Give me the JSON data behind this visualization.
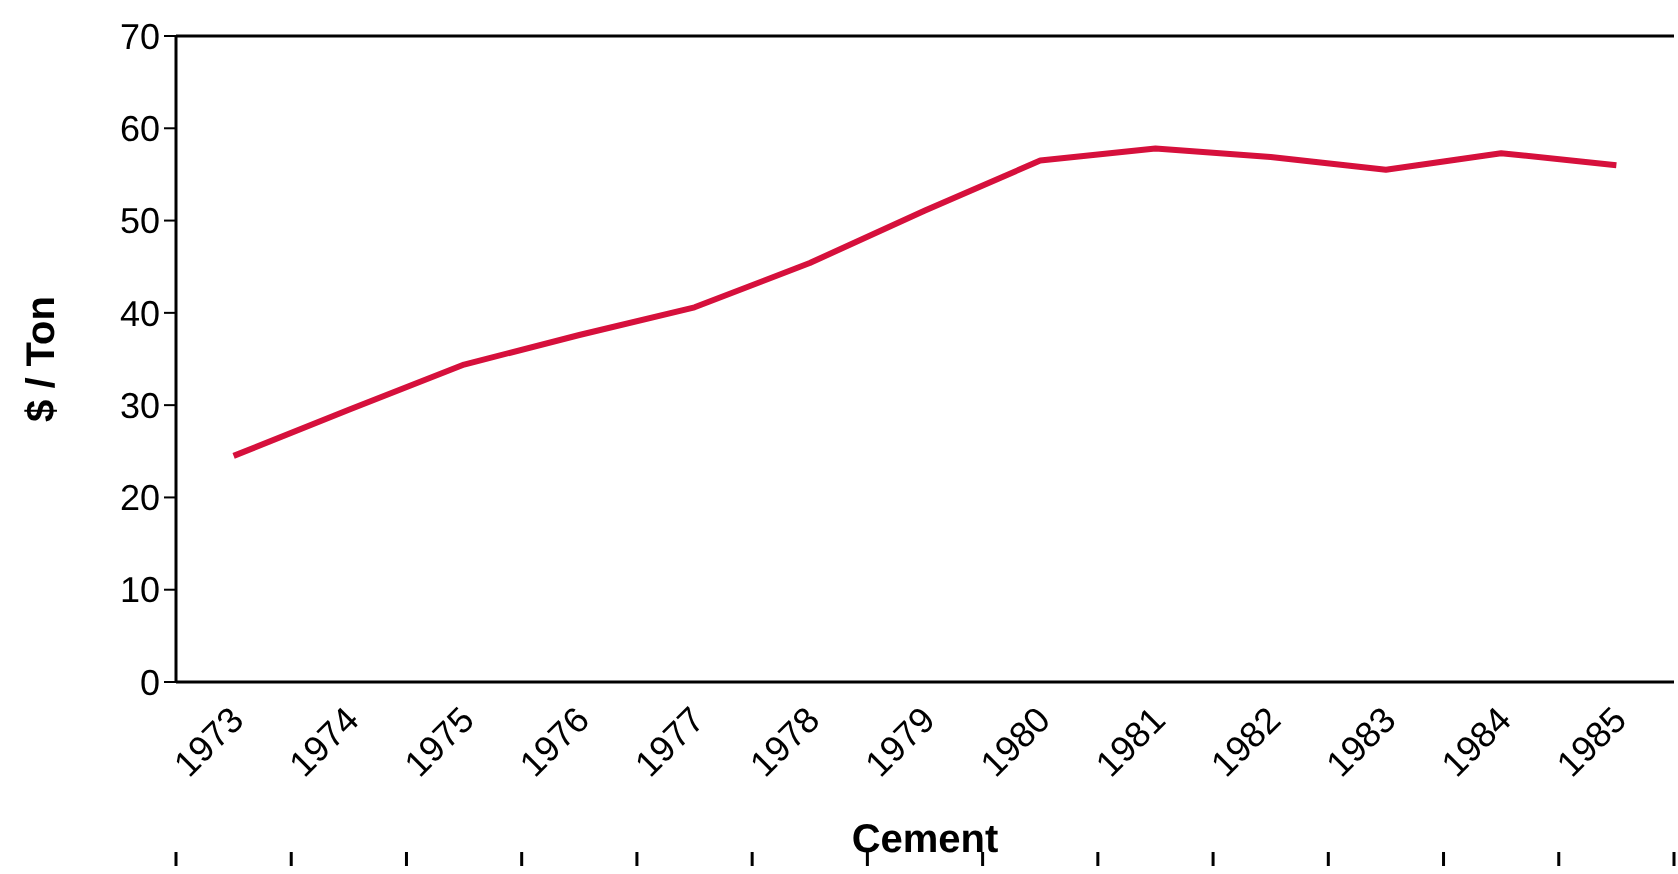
{
  "chart_data": {
    "type": "line",
    "xlabel": "Cement",
    "ylabel": "$ / Ton",
    "categories": [
      "1973",
      "1974",
      "1975",
      "1976",
      "1977",
      "1978",
      "1979",
      "1980",
      "1981",
      "1982",
      "1983",
      "1984",
      "1985"
    ],
    "series": [
      {
        "color": "#d6103c",
        "values": [
          24.5,
          29.5,
          34.4,
          37.6,
          40.6,
          45.4,
          51.1,
          56.5,
          57.8,
          56.9,
          55.5,
          57.3,
          56.0
        ]
      }
    ],
    "ylim": [
      0,
      70
    ],
    "yticks": [
      0,
      10,
      20,
      30,
      40,
      50,
      60,
      70
    ],
    "marker": "none",
    "line_style": "solid"
  }
}
